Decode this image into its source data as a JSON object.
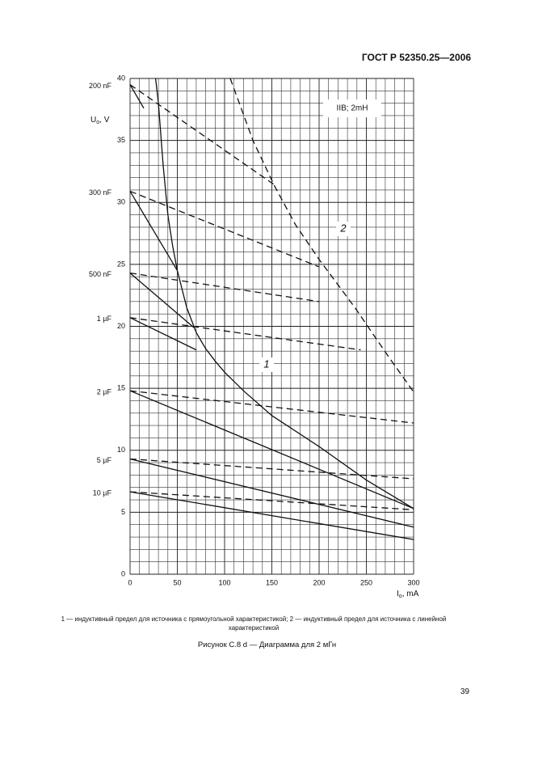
{
  "header": "ГОСТ Р 52350.25—2006",
  "chart_data": {
    "type": "line",
    "xlim": [
      0,
      300
    ],
    "ylim": [
      0,
      40
    ],
    "xticks": [
      0,
      50,
      100,
      150,
      200,
      250,
      300
    ],
    "yticks": [
      0,
      5,
      10,
      15,
      20,
      25,
      30,
      35,
      40
    ],
    "grid": true,
    "x_label": {
      "main": "I",
      "sub": "o",
      "rest": ", mA"
    },
    "y_label": {
      "main": "U",
      "sub": "o",
      "rest": ", V"
    },
    "box_label": "IIB; 2mH",
    "series": [
      {
        "label": "1",
        "style": "solid",
        "x": [
          27,
          30,
          35,
          40,
          45,
          50,
          60,
          70,
          80,
          90,
          100,
          120,
          150,
          200,
          250,
          300
        ],
        "values": [
          40,
          38,
          33,
          29,
          26.5,
          24.5,
          21.5,
          19.5,
          18.2,
          17.2,
          16.3,
          14.8,
          12.8,
          10.3,
          7.6,
          5.3
        ]
      },
      {
        "label": "2",
        "style": "dashed",
        "x": [
          106,
          130,
          153,
          175,
          200,
          238,
          273,
          300
        ],
        "values": [
          40,
          35,
          31.3,
          28.2,
          25.4,
          21.5,
          17.6,
          14.7
        ]
      },
      {
        "label": "200 nF",
        "style": "solid",
        "x": [
          0,
          14.5
        ],
        "values": [
          39.5,
          37.6
        ]
      },
      {
        "style": "dashed",
        "x": [
          0,
          155
        ],
        "values": [
          39.5,
          31.3
        ]
      },
      {
        "label": "300 nF",
        "style": "solid",
        "x": [
          0,
          50
        ],
        "values": [
          30.9,
          24.5
        ]
      },
      {
        "style": "dashed",
        "x": [
          0,
          200
        ],
        "values": [
          30.9,
          24.8
        ]
      },
      {
        "label": "500 nF",
        "style": "solid",
        "x": [
          0,
          67.5
        ],
        "values": [
          24.3,
          19.9
        ]
      },
      {
        "style": "dashed",
        "x": [
          0,
          200
        ],
        "values": [
          24.3,
          22
        ]
      },
      {
        "label": "1 µF",
        "style": "solid",
        "x": [
          0,
          70
        ],
        "values": [
          20.7,
          18.1
        ]
      },
      {
        "style": "dashed",
        "x": [
          0,
          244
        ],
        "values": [
          20.7,
          18.1
        ]
      },
      {
        "label": "2 µF",
        "style": "solid",
        "x": [
          0,
          300
        ],
        "values": [
          14.8,
          5.3
        ]
      },
      {
        "style": "dashed",
        "x": [
          0,
          300
        ],
        "values": [
          14.8,
          12.2
        ]
      },
      {
        "label": "5 µF",
        "style": "solid",
        "x": [
          0,
          300
        ],
        "values": [
          9.3,
          3.8
        ]
      },
      {
        "style": "dashed",
        "x": [
          0,
          300
        ],
        "values": [
          9.3,
          7.7
        ]
      },
      {
        "label": "10 µF",
        "style": "solid",
        "x": [
          0,
          300
        ],
        "values": [
          6.65,
          2.8
        ]
      },
      {
        "style": "dashed",
        "x": [
          0,
          300
        ],
        "values": [
          6.65,
          5.2
        ]
      }
    ]
  },
  "note": "1 — индуктивный предел для источника с прямоугольной характеристикой; 2 — индуктивный предел для источника с линейной характеристикой",
  "caption": "Рисунок С.8 d — Диаграмма для 2 мГн",
  "page_number": "39"
}
